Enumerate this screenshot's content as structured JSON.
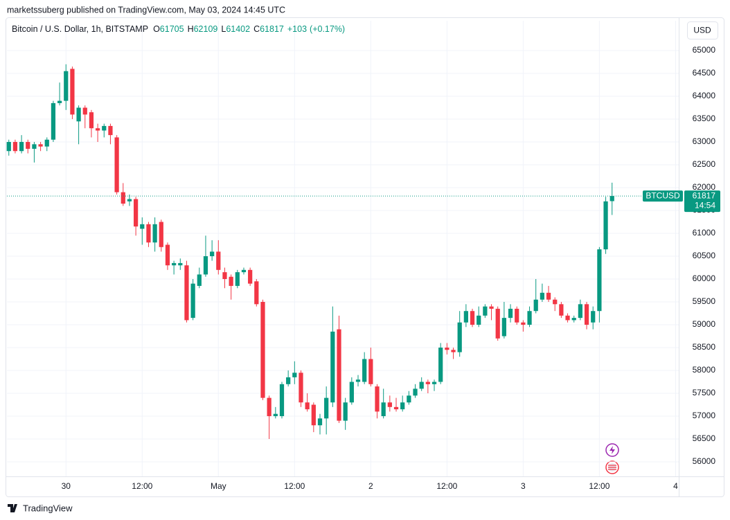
{
  "header": "marketssuberg published on TradingView.com, May 03, 2024 14:45 UTC",
  "brand": "TradingView",
  "chart_data": {
    "type": "candlestick",
    "title": "Bitcoin / U.S. Dollar, 1h, BITSTAMP",
    "ohlc_labels": [
      "O",
      "H",
      "L",
      "C"
    ],
    "change": {
      "value": 103,
      "label": "+103"
    },
    "change_pct": {
      "value": 0.17,
      "label": "(+0.17%)"
    },
    "currency": "USD",
    "symbol": "BTCUSD",
    "countdown": "14:54",
    "up_color": "#089981",
    "down_color": "#f23645",
    "grid": true,
    "x": [
      -9,
      -8,
      -7,
      -6,
      -5,
      -4,
      -3,
      -2,
      -1,
      0,
      1,
      2,
      3,
      4,
      5,
      6,
      7,
      8,
      9,
      10,
      11,
      12,
      13,
      14,
      15,
      16,
      17,
      18,
      19,
      20,
      21,
      22,
      23,
      24,
      25,
      26,
      27,
      28,
      29,
      30,
      31,
      32,
      33,
      34,
      35,
      36,
      37,
      38,
      39,
      40,
      41,
      42,
      43,
      44,
      45,
      46,
      47,
      48,
      49,
      50,
      51,
      52,
      53,
      54,
      55,
      56,
      57,
      58,
      59,
      60,
      61,
      62,
      63,
      64,
      65,
      66,
      67,
      68,
      69,
      70,
      71,
      72,
      73,
      74,
      75,
      76,
      77,
      78,
      79,
      80,
      81,
      82,
      83,
      84,
      85,
      86
    ],
    "open": [
      62800,
      63000,
      62800,
      63000,
      62850,
      62950,
      62900,
      63050,
      63850,
      63900,
      64600,
      63450,
      63750,
      63650,
      63300,
      63250,
      63350,
      63100,
      61900,
      61700,
      61750,
      61100,
      61200,
      60800,
      61250,
      60750,
      60300,
      60300,
      60300,
      59150,
      59850,
      60100,
      60500,
      60600,
      60150,
      60050,
      59850,
      60150,
      60200,
      59950,
      59500,
      57400,
      57000,
      57000,
      57700,
      57850,
      57950,
      57300,
      57250,
      56800,
      56950,
      57300,
      58900,
      56900,
      57300,
      57750,
      57750,
      58250,
      57650,
      57000,
      57300,
      57200,
      57150,
      57300,
      57450,
      57600,
      57750,
      57700,
      57750,
      58500,
      58450,
      58400,
      59050,
      59300,
      59000,
      59200,
      59400,
      59350,
      58750,
      59150,
      59350,
      59050,
      59000,
      59300,
      59550,
      59700,
      59550,
      59450,
      59200,
      59100,
      59150,
      59450,
      59050,
      59300,
      60650,
      61705
    ],
    "high": [
      63050,
      63050,
      63150,
      63050,
      63000,
      63000,
      63100,
      63900,
      64300,
      64700,
      64650,
      63800,
      63800,
      63700,
      63400,
      63400,
      63400,
      63150,
      62100,
      61850,
      61800,
      61350,
      61250,
      61350,
      61300,
      60800,
      60400,
      60450,
      60400,
      60000,
      60250,
      60950,
      60850,
      60850,
      60250,
      60100,
      60200,
      60250,
      60250,
      60000,
      59550,
      57450,
      57200,
      57750,
      58000,
      58200,
      58000,
      57500,
      57300,
      57050,
      57650,
      59400,
      59200,
      57400,
      57850,
      57900,
      58400,
      58500,
      57700,
      57600,
      57450,
      57400,
      57450,
      57550,
      57700,
      57850,
      57800,
      57800,
      58600,
      58600,
      58500,
      59300,
      59450,
      59350,
      59400,
      59450,
      59450,
      59400,
      59500,
      59450,
      59400,
      59100,
      59400,
      60000,
      59900,
      59850,
      59600,
      59500,
      59250,
      59200,
      59550,
      59500,
      59400,
      60700,
      61800,
      62109
    ],
    "low": [
      62700,
      62750,
      62750,
      62750,
      62550,
      62800,
      62800,
      63000,
      63800,
      63700,
      63500,
      62950,
      63300,
      63100,
      63000,
      63100,
      62950,
      61850,
      61600,
      61600,
      60950,
      60750,
      60700,
      60600,
      60600,
      60200,
      60100,
      60200,
      59050,
      59100,
      59800,
      60050,
      60400,
      60100,
      59800,
      59550,
      59800,
      60100,
      59850,
      59400,
      57350,
      56500,
      56950,
      56950,
      57650,
      57700,
      57200,
      57100,
      56650,
      56600,
      56600,
      57200,
      56850,
      56700,
      57250,
      57650,
      57700,
      57650,
      56950,
      56950,
      57100,
      57100,
      57100,
      57250,
      57400,
      57550,
      57500,
      57550,
      57700,
      58350,
      58250,
      58300,
      58950,
      58950,
      58950,
      59150,
      59100,
      58650,
      58700,
      59050,
      59000,
      58850,
      58950,
      59250,
      59500,
      59500,
      59300,
      59150,
      59050,
      59050,
      59100,
      58900,
      58900,
      59050,
      60550,
      61402
    ],
    "close": [
      63000,
      62800,
      63000,
      62850,
      62950,
      62900,
      63050,
      63850,
      63900,
      64550,
      63600,
      63750,
      63600,
      63300,
      63250,
      63350,
      63150,
      61900,
      61650,
      61750,
      61150,
      61200,
      60800,
      61200,
      60700,
      60300,
      60350,
      60350,
      59100,
      59900,
      60100,
      60500,
      60600,
      60200,
      60000,
      59850,
      60150,
      60200,
      59900,
      59450,
      57400,
      57000,
      57050,
      57700,
      57850,
      57950,
      57300,
      57150,
      56800,
      56950,
      57400,
      58850,
      56900,
      57300,
      57750,
      57800,
      58250,
      57700,
      57100,
      57300,
      57200,
      57150,
      57300,
      57450,
      57600,
      57750,
      57700,
      57750,
      58500,
      58450,
      58400,
      59050,
      59300,
      59000,
      59200,
      59400,
      59350,
      58700,
      59150,
      59350,
      59050,
      59000,
      59300,
      59550,
      59700,
      59550,
      59450,
      59200,
      59100,
      59150,
      59450,
      59000,
      59300,
      60650,
      61700,
      61817
    ],
    "xlim": [
      -9.3,
      96.5
    ],
    "xticks": [
      {
        "value": 0,
        "label": "30"
      },
      {
        "value": 12,
        "label": "12:00"
      },
      {
        "value": 24,
        "label": "May"
      },
      {
        "value": 36,
        "label": "12:00"
      },
      {
        "value": 48,
        "label": "2"
      },
      {
        "value": 60,
        "label": "12:00"
      },
      {
        "value": 72,
        "label": "3"
      },
      {
        "value": 84,
        "label": "12:00"
      },
      {
        "value": 96,
        "label": "4"
      }
    ],
    "ylim": [
      55682,
      65273
    ],
    "yticks": [
      56000,
      56500,
      57000,
      57500,
      58000,
      58500,
      59000,
      59500,
      60000,
      60500,
      61000,
      61500,
      62000,
      62500,
      63000,
      63500,
      64000,
      64500,
      65000
    ]
  }
}
